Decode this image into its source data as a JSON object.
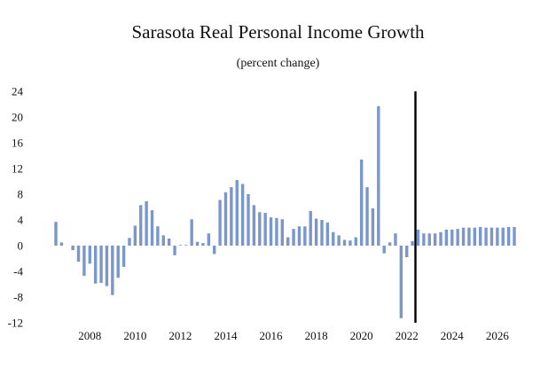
{
  "chart_data": {
    "type": "bar",
    "title": "Sarasota Real Personal Income Growth",
    "subtitle": "(percent change)",
    "xlabel": "",
    "ylabel": "",
    "ylim": [
      -12,
      24
    ],
    "yticks": [
      "24",
      "20",
      "16",
      "12",
      "8",
      "4",
      "0",
      "-4",
      "-8",
      "-12"
    ],
    "xticks": [
      "2008",
      "2010",
      "2012",
      "2014",
      "2016",
      "2018",
      "2020",
      "2022",
      "2024",
      "2026"
    ],
    "x_range": [
      2006.5,
      2026.75
    ],
    "forecast_line_at": 2022.5,
    "bar_color": "#7a97cc",
    "line_color": "#000000",
    "bars": [
      {
        "x": 2006.5,
        "value": 3.7
      },
      {
        "x": 2006.75,
        "value": 0.5
      },
      {
        "x": 2007.0,
        "value": 0
      },
      {
        "x": 2007.25,
        "value": -0.7
      },
      {
        "x": 2007.5,
        "value": -2.5
      },
      {
        "x": 2007.75,
        "value": -4.7
      },
      {
        "x": 2008.0,
        "value": -2.8
      },
      {
        "x": 2008.25,
        "value": -5.9
      },
      {
        "x": 2008.5,
        "value": -5.8
      },
      {
        "x": 2008.75,
        "value": -6.3
      },
      {
        "x": 2009.0,
        "value": -7.7
      },
      {
        "x": 2009.25,
        "value": -5.0
      },
      {
        "x": 2009.5,
        "value": -3.3
      },
      {
        "x": 2009.75,
        "value": 1.2
      },
      {
        "x": 2010.0,
        "value": 3.1
      },
      {
        "x": 2010.25,
        "value": 6.3
      },
      {
        "x": 2010.5,
        "value": 6.9
      },
      {
        "x": 2010.75,
        "value": 5.5
      },
      {
        "x": 2011.0,
        "value": 3.0
      },
      {
        "x": 2011.25,
        "value": 1.6
      },
      {
        "x": 2011.5,
        "value": 1.1
      },
      {
        "x": 2011.75,
        "value": -1.5
      },
      {
        "x": 2012.0,
        "value": 0.1
      },
      {
        "x": 2012.25,
        "value": 0.1
      },
      {
        "x": 2012.5,
        "value": 4.1
      },
      {
        "x": 2012.75,
        "value": 0.6
      },
      {
        "x": 2013.0,
        "value": 0.4
      },
      {
        "x": 2013.25,
        "value": 1.9
      },
      {
        "x": 2013.5,
        "value": -1.3
      },
      {
        "x": 2013.75,
        "value": 7.1
      },
      {
        "x": 2014.0,
        "value": 8.3
      },
      {
        "x": 2014.25,
        "value": 9.1
      },
      {
        "x": 2014.5,
        "value": 10.2
      },
      {
        "x": 2014.75,
        "value": 9.6
      },
      {
        "x": 2015.0,
        "value": 8.0
      },
      {
        "x": 2015.25,
        "value": 6.3
      },
      {
        "x": 2015.5,
        "value": 5.2
      },
      {
        "x": 2015.75,
        "value": 5.1
      },
      {
        "x": 2016.0,
        "value": 4.4
      },
      {
        "x": 2016.25,
        "value": 4.3
      },
      {
        "x": 2016.5,
        "value": 4.1
      },
      {
        "x": 2016.75,
        "value": 1.3
      },
      {
        "x": 2017.0,
        "value": 2.6
      },
      {
        "x": 2017.25,
        "value": 3.0
      },
      {
        "x": 2017.5,
        "value": 3.0
      },
      {
        "x": 2017.75,
        "value": 5.4
      },
      {
        "x": 2018.0,
        "value": 4.2
      },
      {
        "x": 2018.25,
        "value": 4.0
      },
      {
        "x": 2018.5,
        "value": 3.6
      },
      {
        "x": 2018.75,
        "value": 2.1
      },
      {
        "x": 2019.0,
        "value": 1.6
      },
      {
        "x": 2019.25,
        "value": 0.9
      },
      {
        "x": 2019.5,
        "value": 0.8
      },
      {
        "x": 2019.75,
        "value": 1.3
      },
      {
        "x": 2020.0,
        "value": 13.4
      },
      {
        "x": 2020.25,
        "value": 9.1
      },
      {
        "x": 2020.5,
        "value": 5.8
      },
      {
        "x": 2020.75,
        "value": 21.7
      },
      {
        "x": 2021.0,
        "value": -1.2
      },
      {
        "x": 2021.25,
        "value": 0.5
      },
      {
        "x": 2021.5,
        "value": 1.9
      },
      {
        "x": 2021.75,
        "value": -11.3
      },
      {
        "x": 2022.0,
        "value": -1.8
      },
      {
        "x": 2022.25,
        "value": 0.7
      },
      {
        "x": 2022.5,
        "value": 2.5
      },
      {
        "x": 2022.75,
        "value": 1.9
      },
      {
        "x": 2023.0,
        "value": 1.9
      },
      {
        "x": 2023.25,
        "value": 1.9
      },
      {
        "x": 2023.5,
        "value": 2.1
      },
      {
        "x": 2023.75,
        "value": 2.5
      },
      {
        "x": 2024.0,
        "value": 2.5
      },
      {
        "x": 2024.25,
        "value": 2.6
      },
      {
        "x": 2024.5,
        "value": 2.8
      },
      {
        "x": 2024.75,
        "value": 2.8
      },
      {
        "x": 2025.0,
        "value": 2.8
      },
      {
        "x": 2025.25,
        "value": 2.9
      },
      {
        "x": 2025.5,
        "value": 2.8
      },
      {
        "x": 2025.75,
        "value": 2.8
      },
      {
        "x": 2026.0,
        "value": 2.8
      },
      {
        "x": 2026.25,
        "value": 2.8
      },
      {
        "x": 2026.5,
        "value": 2.9
      },
      {
        "x": 2026.75,
        "value": 2.9
      }
    ],
    "grid": false,
    "legend": "none"
  }
}
